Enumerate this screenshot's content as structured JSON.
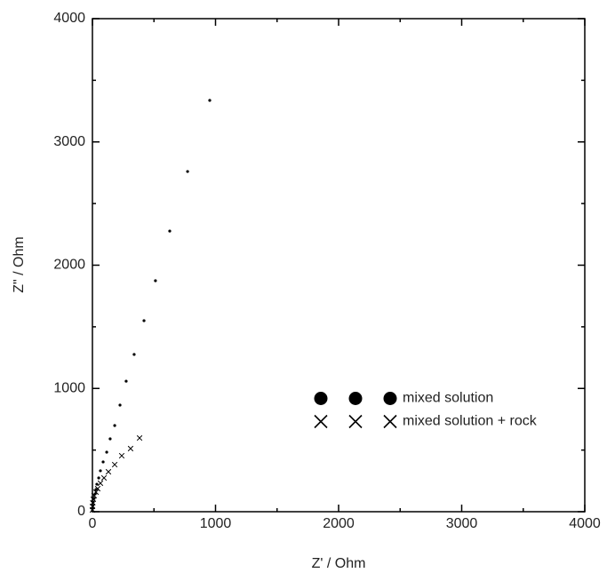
{
  "chart_data": {
    "type": "scatter",
    "xlabel": "Z' / Ohm",
    "ylabel": "Z\" / Ohm",
    "xlim": [
      0,
      4000
    ],
    "ylim": [
      0,
      4000
    ],
    "xticks": [
      0,
      1000,
      2000,
      3000,
      4000
    ],
    "yticks": [
      0,
      1000,
      2000,
      3000,
      4000
    ],
    "legend": "center right",
    "series": [
      {
        "name": "mixed solution",
        "color": "#000000",
        "marker": "dot",
        "x": [
          953,
          773,
          628,
          512,
          419,
          339,
          274,
          224,
          181,
          144,
          116,
          87,
          65,
          51,
          36,
          29,
          22,
          14,
          7,
          3,
          1,
          0
        ],
        "values": [
          3337,
          2760,
          2277,
          1874,
          1550,
          1276,
          1059,
          865,
          699,
          591,
          483,
          404,
          332,
          274,
          223,
          180,
          144,
          108,
          79,
          50,
          29,
          7
        ]
      },
      {
        "name": "mixed solution + rock",
        "color": "#000000",
        "marker": "cross",
        "x": [
          383,
          310,
          238,
          181,
          130,
          94,
          65,
          43,
          29,
          14,
          7,
          3,
          1,
          0
        ],
        "values": [
          598,
          512,
          454,
          382,
          324,
          274,
          231,
          187,
          159,
          130,
          101,
          72,
          43,
          14
        ]
      }
    ]
  }
}
